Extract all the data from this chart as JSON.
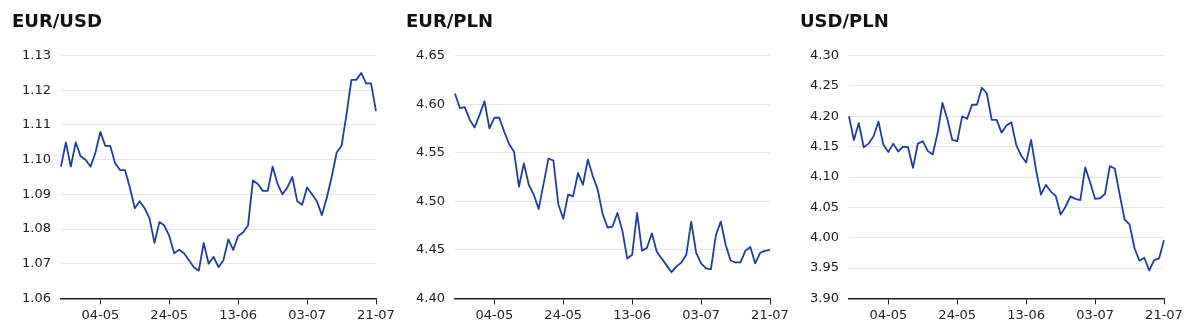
{
  "chart_data": [
    {
      "type": "line",
      "title": "EUR/USD",
      "color": "#1f3f9f",
      "grid": "y",
      "legend": false,
      "marker": "none",
      "line_style": "solid",
      "categories": [
        null,
        null,
        null,
        null,
        null,
        null,
        null,
        null,
        "04-05",
        null,
        null,
        null,
        null,
        null,
        null,
        null,
        null,
        null,
        null,
        null,
        null,
        null,
        "24-05",
        null,
        null,
        null,
        null,
        null,
        null,
        null,
        null,
        null,
        null,
        null,
        null,
        null,
        "13-06",
        null,
        null,
        null,
        null,
        null,
        null,
        null,
        null,
        null,
        null,
        null,
        null,
        null,
        "03-07",
        null,
        null,
        null,
        null,
        null,
        null,
        null,
        null,
        null,
        null,
        null,
        null,
        null,
        "21-07"
      ],
      "values": [
        1.098,
        1.105,
        1.098,
        1.105,
        1.101,
        1.1,
        1.098,
        1.102,
        1.108,
        1.104,
        1.104,
        1.099,
        1.097,
        1.097,
        1.092,
        1.086,
        1.088,
        1.086,
        1.083,
        1.076,
        1.082,
        1.081,
        1.078,
        1.073,
        1.074,
        1.073,
        1.071,
        1.069,
        1.068,
        1.076,
        1.07,
        1.072,
        1.069,
        1.071,
        1.077,
        1.074,
        1.078,
        1.079,
        1.081,
        1.094,
        1.093,
        1.091,
        1.091,
        1.098,
        1.093,
        1.09,
        1.092,
        1.095,
        1.088,
        1.087,
        1.092,
        1.09,
        1.088,
        1.084,
        1.089,
        1.095,
        1.102,
        1.104,
        1.113,
        1.123,
        1.123,
        1.125,
        1.122,
        1.122,
        1.114
      ],
      "ylim": [
        1.06,
        1.13
      ],
      "yticks": [
        {
          "value": 1.06,
          "label": "1.06"
        },
        {
          "value": 1.07,
          "label": "1.07"
        },
        {
          "value": 1.08,
          "label": "1.08"
        },
        {
          "value": 1.09,
          "label": "1.09"
        },
        {
          "value": 1.1,
          "label": "1.10"
        },
        {
          "value": 1.11,
          "label": "1.11"
        },
        {
          "value": 1.12,
          "label": "1.12"
        },
        {
          "value": 1.13,
          "label": "1.13"
        }
      ]
    },
    {
      "type": "line",
      "title": "EUR/PLN",
      "color": "#1f3f9f",
      "grid": "y",
      "legend": false,
      "marker": "none",
      "line_style": "solid",
      "categories": [
        null,
        null,
        null,
        null,
        null,
        null,
        null,
        null,
        "04-05",
        null,
        null,
        null,
        null,
        null,
        null,
        null,
        null,
        null,
        null,
        null,
        null,
        null,
        "24-05",
        null,
        null,
        null,
        null,
        null,
        null,
        null,
        null,
        null,
        null,
        null,
        null,
        null,
        "13-06",
        null,
        null,
        null,
        null,
        null,
        null,
        null,
        null,
        null,
        null,
        null,
        null,
        null,
        "03-07",
        null,
        null,
        null,
        null,
        null,
        null,
        null,
        null,
        null,
        null,
        null,
        null,
        null,
        "21-07"
      ],
      "values": [
        4.611,
        4.596,
        4.597,
        4.584,
        4.576,
        4.589,
        4.603,
        4.575,
        4.586,
        4.586,
        4.572,
        4.559,
        4.551,
        4.515,
        4.539,
        4.517,
        4.507,
        4.492,
        4.518,
        4.544,
        4.542,
        4.497,
        4.482,
        4.507,
        4.505,
        4.529,
        4.517,
        4.543,
        4.526,
        4.512,
        4.487,
        4.473,
        4.474,
        4.488,
        4.47,
        4.441,
        4.445,
        4.488,
        4.449,
        4.452,
        4.467,
        4.448,
        4.441,
        4.434,
        4.427,
        4.433,
        4.437,
        4.445,
        4.479,
        4.447,
        4.436,
        4.431,
        4.43,
        4.465,
        4.479,
        4.455,
        4.439,
        4.437,
        4.437,
        4.449,
        4.453,
        4.436,
        4.447,
        4.449,
        4.45
      ],
      "ylim": [
        4.4,
        4.65
      ],
      "yticks": [
        {
          "value": 4.4,
          "label": "4.40"
        },
        {
          "value": 4.45,
          "label": "4.45"
        },
        {
          "value": 4.5,
          "label": "4.50"
        },
        {
          "value": 4.55,
          "label": "4.55"
        },
        {
          "value": 4.6,
          "label": "4.60"
        },
        {
          "value": 4.65,
          "label": "4.65"
        }
      ]
    },
    {
      "type": "line",
      "title": "USD/PLN",
      "color": "#1f3f9f",
      "grid": "y",
      "legend": false,
      "marker": "none",
      "line_style": "solid",
      "categories": [
        null,
        null,
        null,
        null,
        null,
        null,
        null,
        null,
        "04-05",
        null,
        null,
        null,
        null,
        null,
        null,
        null,
        null,
        null,
        null,
        null,
        null,
        null,
        "24-05",
        null,
        null,
        null,
        null,
        null,
        null,
        null,
        null,
        null,
        null,
        null,
        null,
        null,
        "13-06",
        null,
        null,
        null,
        null,
        null,
        null,
        null,
        null,
        null,
        null,
        null,
        null,
        null,
        "03-07",
        null,
        null,
        null,
        null,
        null,
        null,
        null,
        null,
        null,
        null,
        null,
        null,
        null,
        "21-07"
      ],
      "values": [
        4.2,
        4.161,
        4.189,
        4.149,
        4.155,
        4.167,
        4.191,
        4.153,
        4.141,
        4.155,
        4.142,
        4.15,
        4.149,
        4.115,
        4.155,
        4.159,
        4.143,
        4.137,
        4.172,
        4.222,
        4.195,
        4.161,
        4.159,
        4.2,
        4.196,
        4.219,
        4.219,
        4.247,
        4.238,
        4.194,
        4.194,
        4.173,
        4.185,
        4.19,
        4.152,
        4.135,
        4.124,
        4.161,
        4.112,
        4.071,
        4.087,
        4.076,
        4.069,
        4.038,
        4.051,
        4.068,
        4.064,
        4.062,
        4.116,
        4.091,
        4.064,
        4.065,
        4.072,
        4.118,
        4.114,
        4.071,
        4.03,
        4.022,
        3.983,
        3.962,
        3.967,
        3.946,
        3.963,
        3.966,
        3.996
      ],
      "ylim": [
        3.9,
        4.3
      ],
      "yticks": [
        {
          "value": 3.9,
          "label": "3.90"
        },
        {
          "value": 3.95,
          "label": "3.95"
        },
        {
          "value": 4.0,
          "label": "4.00"
        },
        {
          "value": 4.05,
          "label": "4.05"
        },
        {
          "value": 4.1,
          "label": "4.10"
        },
        {
          "value": 4.15,
          "label": "4.15"
        },
        {
          "value": 4.2,
          "label": "4.20"
        },
        {
          "value": 4.25,
          "label": "4.25"
        },
        {
          "value": 4.3,
          "label": "4.30"
        }
      ]
    }
  ]
}
